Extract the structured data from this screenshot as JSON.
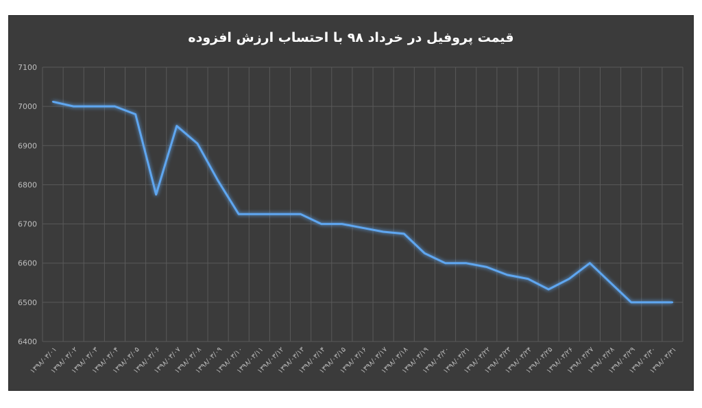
{
  "chart_data": {
    "type": "line",
    "title": "قیمت پروفیل در خرداد ۹۸ با احتساب ارزش افزوده",
    "xlabel": "",
    "ylabel": "",
    "ylim": [
      6400,
      7100
    ],
    "yticks": [
      6400,
      6500,
      6600,
      6700,
      6800,
      6900,
      7000,
      7100
    ],
    "grid": true,
    "categories": [
      "۱۳۹۸/۰۳/۰۱",
      "۱۳۹۸/۰۳/۰۲",
      "۱۳۹۸/۰۳/۰۳",
      "۱۳۹۸/۰۳/۰۴",
      "۱۳۹۸/۰۳/۰۵",
      "۱۳۹۸/۰۳/۰۶",
      "۱۳۹۸/۰۳/۰۷",
      "۱۳۹۸/۰۳/۰۸",
      "۱۳۹۸/۰۳/۰۹",
      "۱۳۹۸/۰۳/۱۰",
      "۱۳۹۸/۰۳/۱۱",
      "۱۳۹۸/۰۳/۱۲",
      "۱۳۹۸/۰۳/۱۳",
      "۱۳۹۸/۰۳/۱۴",
      "۱۳۹۸/۰۳/۱۵",
      "۱۳۹۸/۰۳/۱۶",
      "۱۳۹۸/۰۳/۱۷",
      "۱۳۹۸/۰۳/۱۸",
      "۱۳۹۸/۰۳/۱۹",
      "۱۳۹۸/۰۳/۲۰",
      "۱۳۹۸/۰۳/۲۱",
      "۱۳۹۸/۰۳/۲۲",
      "۱۳۹۸/۰۳/۲۳",
      "۱۳۹۸/۰۳/۲۴",
      "۱۳۹۸/۰۳/۲۵",
      "۱۳۹۸/۰۳/۲۶",
      "۱۳۹۸/۰۳/۲۷",
      "۱۳۹۸/۰۳/۲۸",
      "۱۳۹۸/۰۳/۲۹",
      "۱۳۹۸/۰۳/۳۰",
      "۱۳۹۸/۰۳/۳۱"
    ],
    "series": [
      {
        "values": [
          7012,
          7000,
          7000,
          7000,
          6980,
          6775,
          6950,
          6905,
          6810,
          6725,
          6725,
          6725,
          6725,
          6700,
          6700,
          6690,
          6680,
          6675,
          6625,
          6600,
          6600,
          6590,
          6570,
          6560,
          6533,
          6560,
          6600,
          6550,
          6500,
          6500,
          6500
        ],
        "color": "#5ea6f0"
      }
    ]
  },
  "colors": {
    "background": "#3b3b3b",
    "grid": "#5a5a5a",
    "text": "#bfbfbf",
    "title": "#ffffff",
    "line": "#5ea6f0"
  }
}
